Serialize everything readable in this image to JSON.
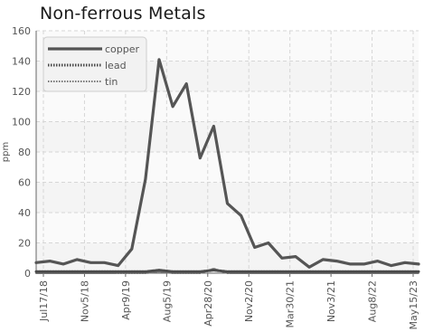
{
  "chart_data": {
    "type": "line",
    "title": "Non-ferrous Metals",
    "xlabel": "",
    "ylabel": "ppm",
    "ylim": [
      0,
      160
    ],
    "yticks": [
      0,
      20,
      40,
      60,
      80,
      100,
      120,
      140,
      160
    ],
    "grid": true,
    "legend_position": "top-left",
    "x_tick_labels": [
      "Jul17/18",
      "Nov5/18",
      "Apr9/19",
      "Aug5/19",
      "Apr28/20",
      "Nov2/20",
      "Mar30/21",
      "Nov3/21",
      "Aug8/22",
      "May15/23"
    ],
    "series": [
      {
        "name": "copper",
        "color": "#555555",
        "style": "solid",
        "values": [
          7,
          8,
          6,
          9,
          7,
          7,
          5,
          16,
          62,
          141,
          110,
          125,
          76,
          97,
          46,
          38,
          17,
          20,
          10,
          11,
          4,
          9,
          8,
          6,
          6,
          8,
          5,
          7,
          6
        ]
      },
      {
        "name": "lead",
        "color": "#4a4a4a",
        "style": "dotted",
        "values": [
          1,
          1,
          1,
          1,
          1,
          1,
          1,
          1,
          1,
          2,
          1,
          1,
          1,
          2,
          1,
          1,
          1,
          1,
          1,
          1,
          1,
          1,
          1,
          1,
          1,
          1,
          1,
          1,
          1
        ]
      },
      {
        "name": "tin",
        "color": "#777777",
        "style": "dotted",
        "values": [
          0,
          0,
          0,
          0,
          0,
          0,
          0,
          0,
          0,
          1,
          0,
          0,
          0,
          3,
          0,
          0,
          0,
          0,
          0,
          0,
          0,
          0,
          0,
          0,
          0,
          0,
          0,
          0,
          0
        ]
      }
    ]
  }
}
